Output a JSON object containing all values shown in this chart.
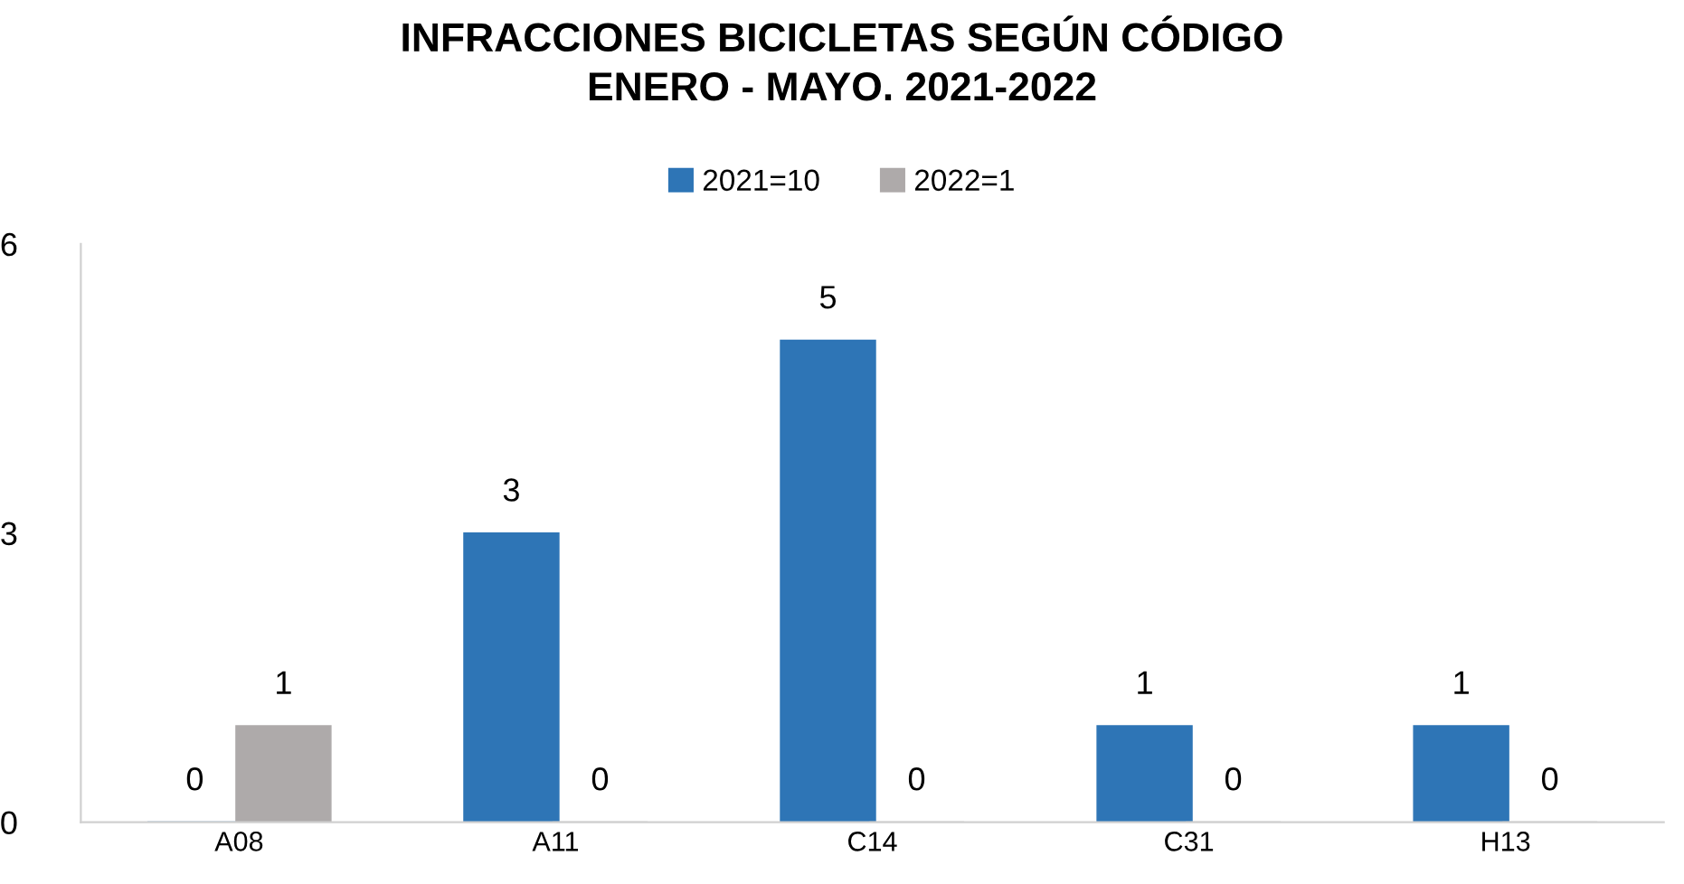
{
  "chart_data": {
    "type": "bar",
    "title": "INFRACCIONES BICICLETAS SEGÚN CÓDIGO\nENERO - MAYO. 2021-2022",
    "categories": [
      "A08",
      "A11",
      "C14",
      "C31",
      "H13"
    ],
    "series": [
      {
        "name": "2021=10",
        "color": "#2e75b6",
        "values": [
          0,
          3,
          5,
          1,
          1
        ]
      },
      {
        "name": "2022=1",
        "color": "#aeaaaa",
        "values": [
          1,
          0,
          0,
          0,
          0
        ]
      }
    ],
    "ylim": [
      0,
      6
    ],
    "yticks": [
      0,
      3,
      6
    ],
    "grid": false,
    "legend": "top",
    "data_labels": true
  }
}
